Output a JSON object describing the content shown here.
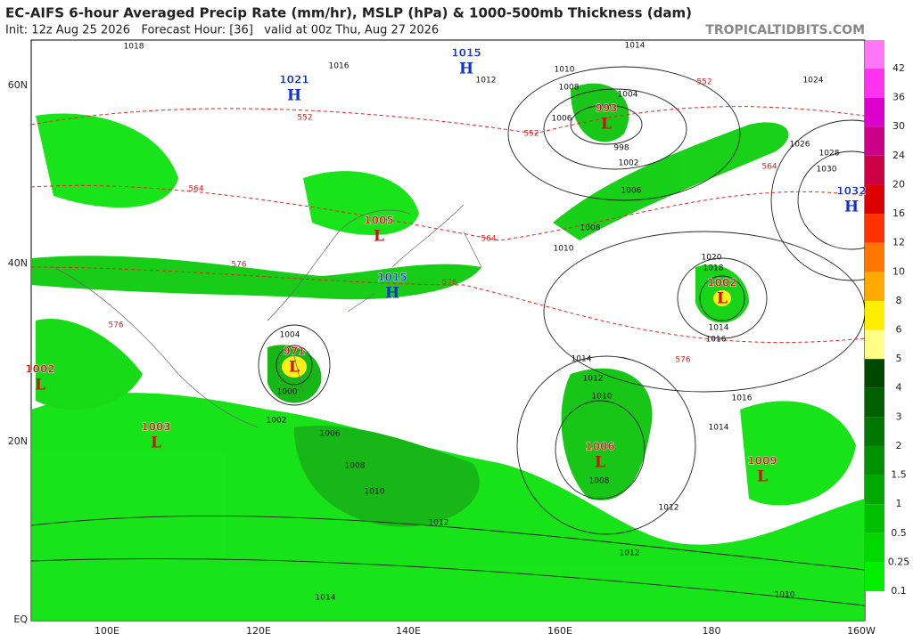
{
  "header": {
    "title": "EC-AIFS 6-hour Averaged Precip Rate (mm/hr), MSLP (hPa) & 1000-500mb Thickness (dam)",
    "subtitle": "Init: 12z Aug 25 2026   Forecast Hour: [36]   valid at 00z Thu, Aug 27 2026",
    "site": "TROPICALTIDBITS.COM"
  },
  "lat_labels": [
    "60N",
    "40N",
    "20N",
    "EQ"
  ],
  "lon_labels": [
    "100E",
    "120E",
    "140E",
    "160E",
    "180",
    "160W"
  ],
  "colorbar": {
    "labels": [
      "0.1",
      "0.25",
      "0.5",
      "1",
      "1.5",
      "2",
      "3",
      "4",
      "5",
      "6",
      "8",
      "10",
      "12",
      "16",
      "20",
      "24",
      "30",
      "36",
      "42"
    ],
    "colors": [
      "#00f000",
      "#00d800",
      "#00c000",
      "#00a800",
      "#009000",
      "#007800",
      "#006000",
      "#004800",
      "#ffff88",
      "#ffee00",
      "#ffaa00",
      "#ff7700",
      "#ff3300",
      "#dd0000",
      "#cc0044",
      "#cc0088",
      "#dd00cc",
      "#ff33ee",
      "#ff77f5"
    ]
  },
  "centers": [
    {
      "symbol": "H",
      "value": "1015"
    },
    {
      "symbol": "H",
      "value": "1021"
    },
    {
      "symbol": "L",
      "value": "993"
    },
    {
      "symbol": "H",
      "value": "1032"
    },
    {
      "symbol": "L",
      "value": "1005"
    },
    {
      "symbol": "H",
      "value": "1015"
    },
    {
      "symbol": "L",
      "value": "1002"
    },
    {
      "symbol": "L",
      "value": "971"
    },
    {
      "symbol": "L",
      "value": "1002"
    },
    {
      "symbol": "L",
      "value": "1003"
    },
    {
      "symbol": "L",
      "value": "1006"
    },
    {
      "symbol": "L",
      "value": "1009"
    }
  ],
  "isobar_labels": [
    "1018",
    "1016",
    "1014",
    "1012",
    "1010",
    "1008",
    "1004",
    "1006",
    "998",
    "1002",
    "1006",
    "1008",
    "1010",
    "1020",
    "1018",
    "1014",
    "1016",
    "1014",
    "1012",
    "1010",
    "1016",
    "1014",
    "1008",
    "1012",
    "1006",
    "1008",
    "1010",
    "1012",
    "1012",
    "1010",
    "1014",
    "1004",
    "1000",
    "1002",
    "1028",
    "1030",
    "1026",
    "1024"
  ],
  "thickness_labels": [
    "552",
    "552",
    "552",
    "564",
    "564",
    "564",
    "576",
    "576",
    "576",
    "576"
  ]
}
